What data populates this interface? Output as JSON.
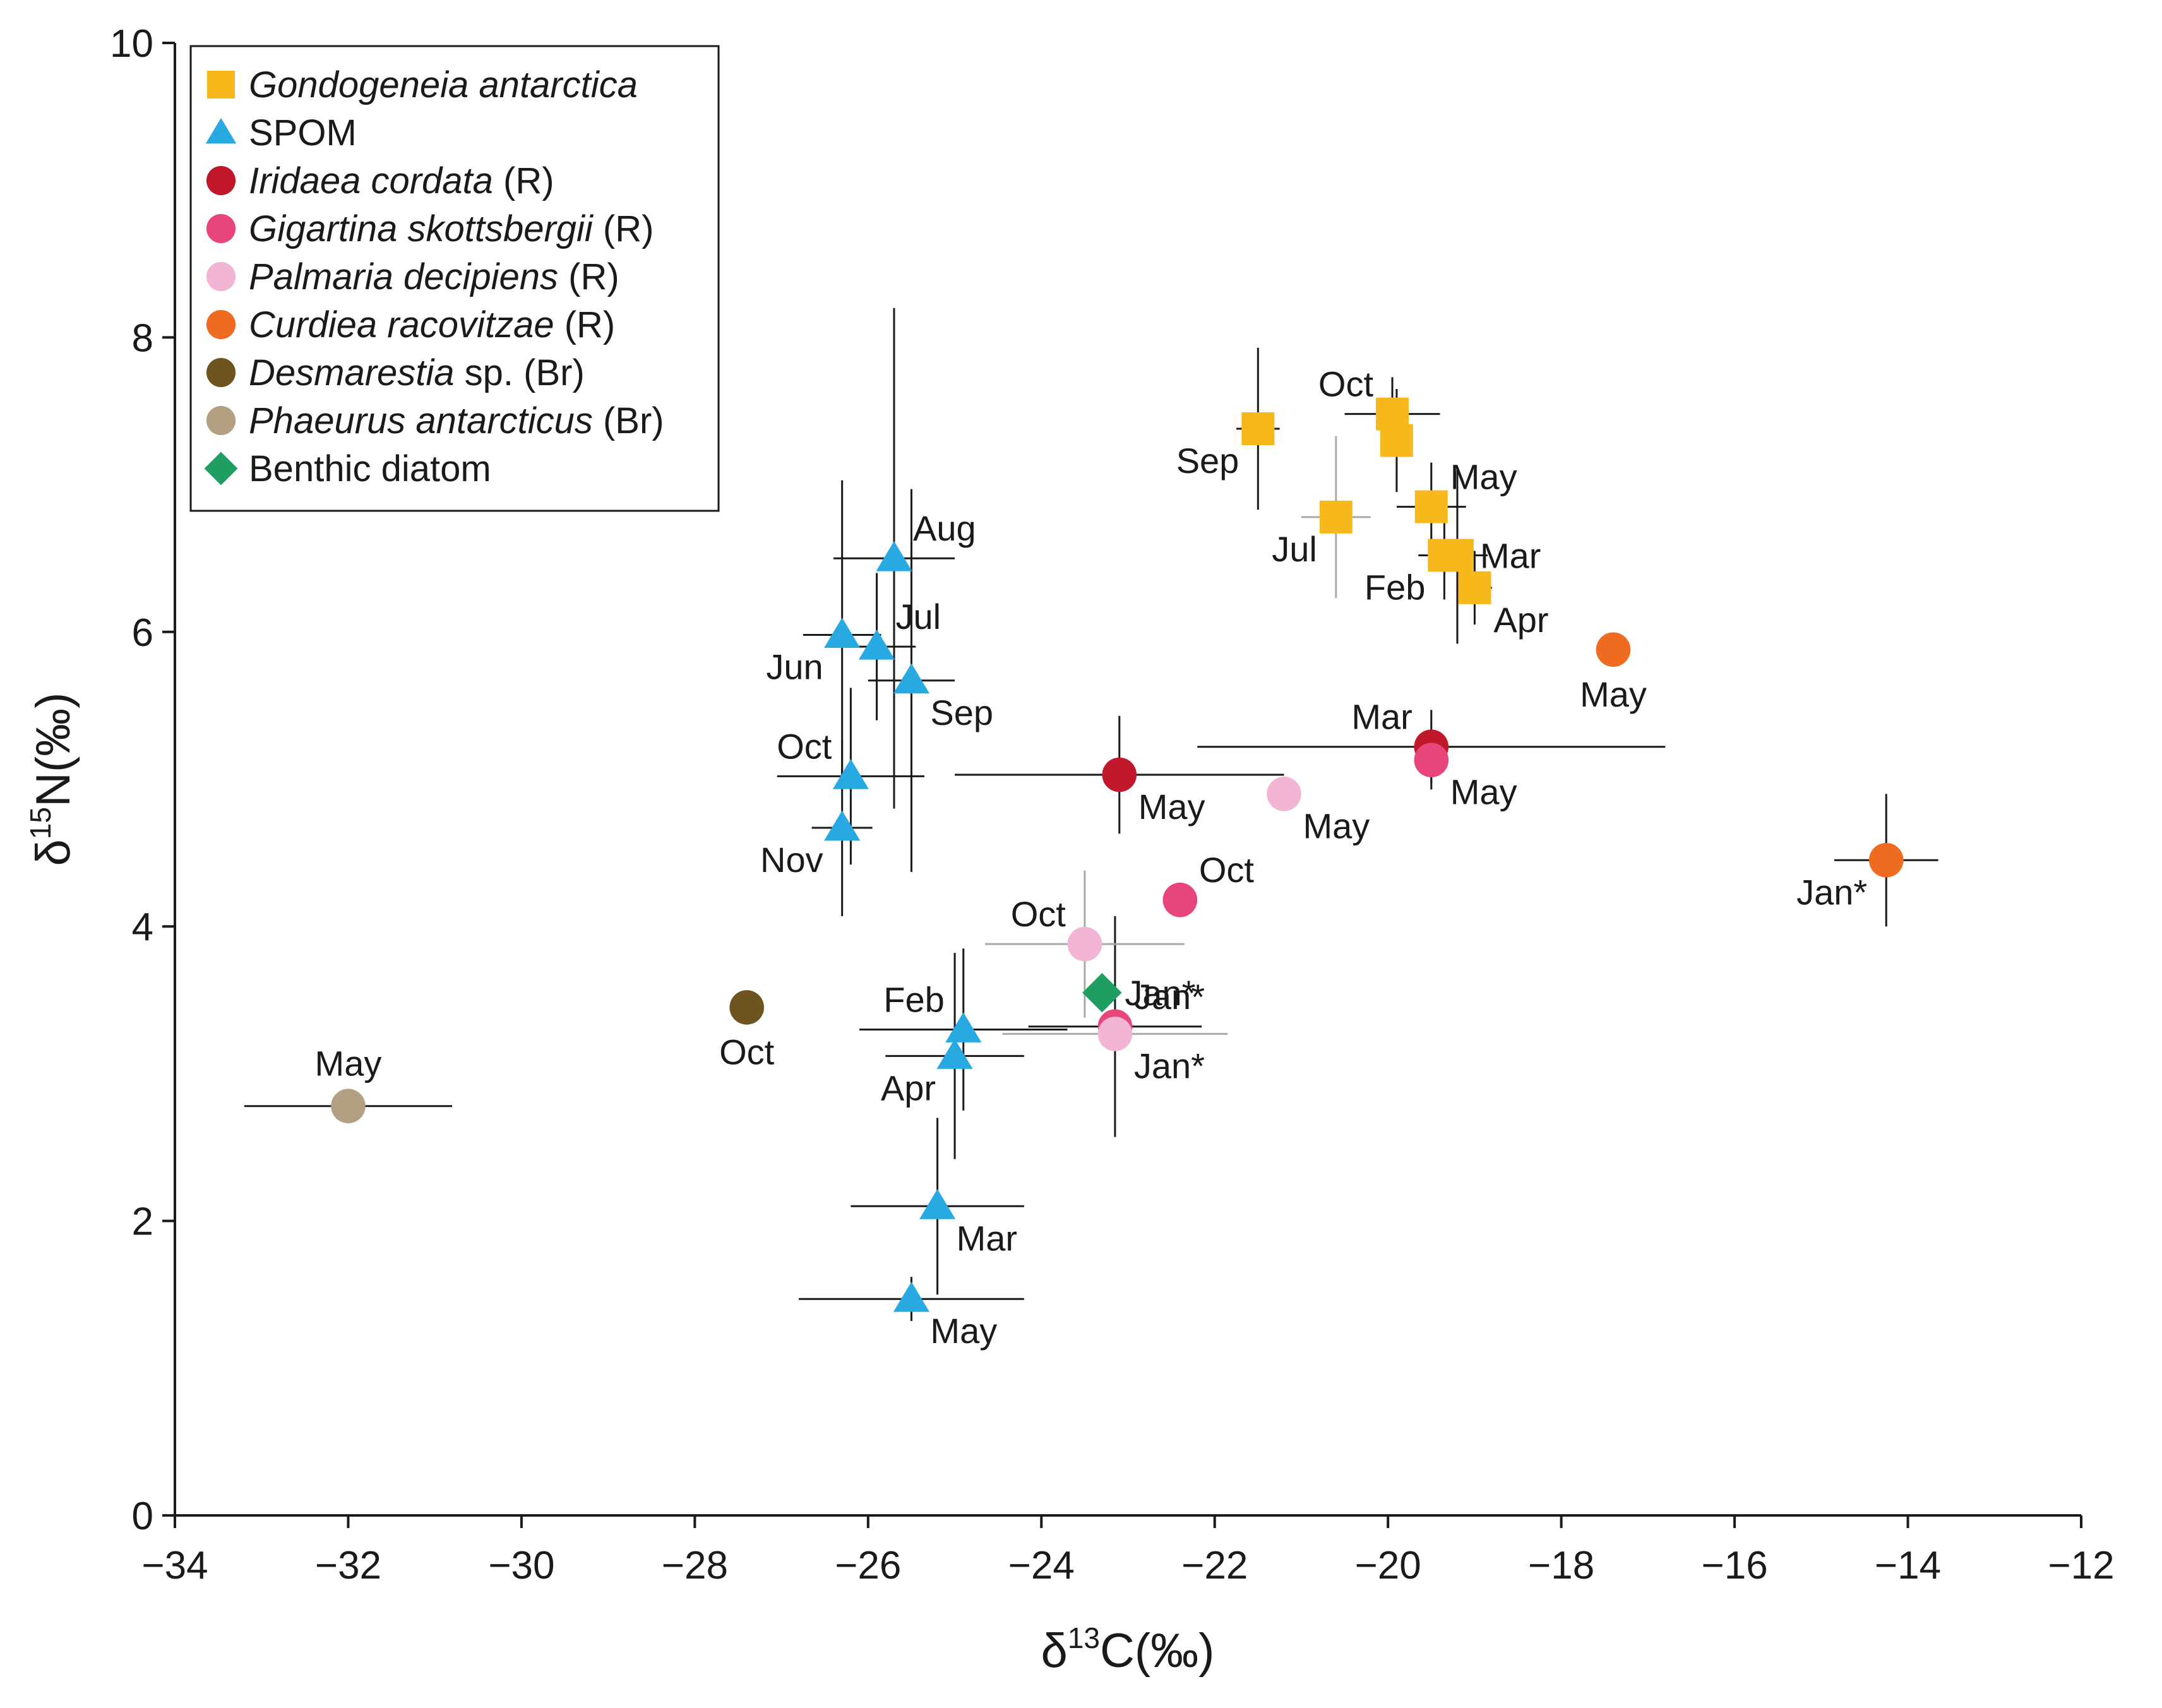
{
  "chart_data": {
    "type": "scatter",
    "title": "",
    "xlabel": "δ13C(‰)",
    "ylabel": "δ15N(‰)",
    "axis_titles": {
      "x": {
        "prefix": "δ",
        "sup": "13",
        "rest": "C(‰)"
      },
      "y": {
        "prefix": "δ",
        "sup": "15",
        "rest": "N(‰)"
      }
    },
    "xlim": [
      -34,
      -12
    ],
    "ylim": [
      0,
      10
    ],
    "xticks": [
      -34,
      -32,
      -30,
      -28,
      -26,
      -24,
      -22,
      -20,
      -18,
      -16,
      -14,
      -12
    ],
    "xtick_labels": [
      "−34",
      "−32",
      "−30",
      "−28",
      "−26",
      "−24",
      "−22",
      "−20",
      "−18",
      "−16",
      "−14",
      "−12"
    ],
    "yticks": [
      0,
      2,
      4,
      6,
      8,
      10
    ],
    "ytick_labels": [
      "0",
      "2",
      "4",
      "6",
      "8",
      "10"
    ],
    "grid": false,
    "legend_position": "top-left",
    "series": [
      {
        "name": "Gondogeneia antarctica",
        "legend": [
          {
            "text": "Gondogeneia antarctica",
            "italic": true
          }
        ],
        "marker": "square",
        "color": "#F7B81B",
        "points": [
          {
            "label": "Sep",
            "x": -21.5,
            "y": 7.38,
            "xerr": 0.25,
            "yerr": 0.55,
            "err_color": "#1a1a1a",
            "label_pos": "bl"
          },
          {
            "label": "Oct",
            "x": -19.95,
            "y": 7.48,
            "xerr": 0.55,
            "yerr": 0.25,
            "err_color": "#1a1a1a",
            "label_pos": "tl"
          },
          {
            "label": "",
            "x": -19.9,
            "y": 7.3,
            "xerr": 0.0,
            "yerr": 0.35,
            "err_color": "#1a1a1a",
            "label_pos": "none"
          },
          {
            "label": "Jul",
            "x": -20.6,
            "y": 6.78,
            "xerr": 0.4,
            "yerr": 0.55,
            "err_color": "#aaaaaa",
            "label_pos": "bl"
          },
          {
            "label": "May",
            "x": -19.5,
            "y": 6.85,
            "xerr": 0.4,
            "yerr": 0.3,
            "err_color": "#1a1a1a",
            "label_pos": "tr"
          },
          {
            "label": "Mar",
            "x": -19.2,
            "y": 6.52,
            "xerr": 0.35,
            "yerr": 0.6,
            "err_color": "#1a1a1a",
            "label_pos": "r"
          },
          {
            "label": "Feb",
            "x": -19.35,
            "y": 6.52,
            "xerr": 0.3,
            "yerr": 0.3,
            "err_color": "#1a1a1a",
            "label_pos": "bl"
          },
          {
            "label": "Apr",
            "x": -19.0,
            "y": 6.3,
            "xerr": 0.2,
            "yerr": 0.25,
            "err_color": "#1a1a1a",
            "label_pos": "br"
          }
        ]
      },
      {
        "name": "SPOM",
        "legend": [
          {
            "text": "SPOM",
            "italic": false
          }
        ],
        "marker": "triangle",
        "color": "#29A9E1",
        "points": [
          {
            "label": "Aug",
            "x": -25.7,
            "y": 6.5,
            "xerr": 0.7,
            "yerr": 1.7,
            "err_color": "#1a1a1a",
            "label_pos": "tr"
          },
          {
            "label": "Jun",
            "x": -26.3,
            "y": 5.98,
            "xerr": 0.45,
            "yerr": 1.05,
            "err_color": "#1a1a1a",
            "label_pos": "bl"
          },
          {
            "label": "Jul",
            "x": -25.9,
            "y": 5.9,
            "xerr": 0.45,
            "yerr": 0.5,
            "err_color": "#1a1a1a",
            "label_pos": "tr"
          },
          {
            "label": "Sep",
            "x": -25.5,
            "y": 5.67,
            "xerr": 0.5,
            "yerr": 1.3,
            "err_color": "#1a1a1a",
            "label_pos": "br"
          },
          {
            "label": "Oct",
            "x": -26.2,
            "y": 5.02,
            "xerr": 0.85,
            "yerr": 0.6,
            "err_color": "#1a1a1a",
            "label_pos": "tl"
          },
          {
            "label": "Nov",
            "x": -26.3,
            "y": 4.67,
            "xerr": 0.35,
            "yerr": 0.6,
            "err_color": "#1a1a1a",
            "label_pos": "bl"
          },
          {
            "label": "Feb",
            "x": -24.9,
            "y": 3.3,
            "xerr": 1.2,
            "yerr": 0.55,
            "err_color": "#1a1a1a",
            "label_pos": "tl"
          },
          {
            "label": "Apr",
            "x": -25.0,
            "y": 3.12,
            "xerr": 0.8,
            "yerr": 0.7,
            "err_color": "#1a1a1a",
            "label_pos": "bl"
          },
          {
            "label": "Mar",
            "x": -25.2,
            "y": 2.1,
            "xerr": 1.0,
            "yerr": 0.6,
            "err_color": "#1a1a1a",
            "label_pos": "br"
          },
          {
            "label": "May",
            "x": -25.5,
            "y": 1.47,
            "xerr": 1.3,
            "yerr": 0.15,
            "err_color": "#1a1a1a",
            "label_pos": "br"
          }
        ]
      },
      {
        "name": "Iridaea cordata (R)",
        "legend": [
          {
            "text": "Iridaea cordata",
            "italic": true
          },
          {
            "text": " (R)",
            "italic": false
          }
        ],
        "marker": "circle",
        "color": "#C0172A",
        "points": [
          {
            "label": "May",
            "x": -23.1,
            "y": 5.03,
            "xerr": 1.9,
            "yerr": 0.4,
            "err_color": "#1a1a1a",
            "label_pos": "br"
          },
          {
            "label": "Mar",
            "x": -19.5,
            "y": 5.22,
            "xerr": 2.7,
            "yerr": 0.25,
            "err_color": "#1a1a1a",
            "label_pos": "tl"
          }
        ]
      },
      {
        "name": "Gigartina skottsbergii (R)",
        "legend": [
          {
            "text": "Gigartina skottsbergii",
            "italic": true
          },
          {
            "text": " (R)",
            "italic": false
          }
        ],
        "marker": "circle",
        "color": "#E8457A",
        "points": [
          {
            "label": "May",
            "x": -19.5,
            "y": 5.13,
            "xerr": 0.0,
            "yerr": 0.2,
            "err_color": "#1a1a1a",
            "label_pos": "br"
          },
          {
            "label": "Oct",
            "x": -22.4,
            "y": 4.18,
            "xerr": 0.0,
            "yerr": 0.0,
            "err_color": "#1a1a1a",
            "label_pos": "tr"
          },
          {
            "label": "Jan*",
            "x": -23.15,
            "y": 3.32,
            "xerr": 1.0,
            "yerr": 0.75,
            "err_color": "#1a1a1a",
            "label_pos": "tr"
          }
        ]
      },
      {
        "name": "Palmaria decipiens (R)",
        "legend": [
          {
            "text": "Palmaria decipiens",
            "italic": true
          },
          {
            "text": " (R)",
            "italic": false
          }
        ],
        "marker": "circle",
        "color": "#F2B5D4",
        "points": [
          {
            "label": "May",
            "x": -21.2,
            "y": 4.9,
            "xerr": 0.0,
            "yerr": 0.0,
            "err_color": "#aaaaaa",
            "label_pos": "br"
          },
          {
            "label": "Oct",
            "x": -23.5,
            "y": 3.88,
            "xerr": 1.15,
            "yerr": 0.5,
            "err_color": "#aaaaaa",
            "label_pos": "tl"
          },
          {
            "label": "Jan*",
            "x": -23.15,
            "y": 3.27,
            "xerr": 1.3,
            "yerr": 0.0,
            "err_color": "#aaaaaa",
            "label_pos": "br"
          }
        ]
      },
      {
        "name": "Curdiea racovitzae (R)",
        "legend": [
          {
            "text": "Curdiea racovitzae",
            "italic": true
          },
          {
            "text": " (R)",
            "italic": false
          }
        ],
        "marker": "circle",
        "color": "#EE6B1F",
        "points": [
          {
            "label": "May",
            "x": -17.4,
            "y": 5.88,
            "xerr": 0.0,
            "yerr": 0.0,
            "err_color": "#1a1a1a",
            "label_pos": "b"
          },
          {
            "label": "Jan*",
            "x": -14.25,
            "y": 4.45,
            "xerr": 0.6,
            "yerr": 0.45,
            "err_color": "#1a1a1a",
            "label_pos": "bl"
          }
        ]
      },
      {
        "name": "Desmarestia sp. (Br)",
        "legend": [
          {
            "text": "Desmarestia",
            "italic": true
          },
          {
            "text": " sp. (Br)",
            "italic": false
          }
        ],
        "marker": "circle",
        "color": "#6E5420",
        "points": [
          {
            "label": "Oct",
            "x": -27.4,
            "y": 3.45,
            "xerr": 0.0,
            "yerr": 0.0,
            "err_color": "#1a1a1a",
            "label_pos": "b"
          }
        ]
      },
      {
        "name": "Phaeurus antarcticus (Br)",
        "legend": [
          {
            "text": "Phaeurus antarcticus",
            "italic": true
          },
          {
            "text": " (Br)",
            "italic": false
          }
        ],
        "marker": "circle",
        "color": "#B39F82",
        "points": [
          {
            "label": "May",
            "x": -32.0,
            "y": 2.78,
            "xerr": 1.2,
            "yerr": 0.0,
            "err_color": "#1a1a1a",
            "label_pos": "t"
          }
        ]
      },
      {
        "name": "Benthic diatom",
        "legend": [
          {
            "text": "Benthic diatom",
            "italic": false
          }
        ],
        "marker": "diamond",
        "color": "#1F9E62",
        "points": [
          {
            "label": "Jan*",
            "x": -23.3,
            "y": 3.55,
            "xerr": 0.0,
            "yerr": 0.0,
            "err_color": "#1a1a1a",
            "label_pos": "r"
          }
        ]
      }
    ]
  }
}
